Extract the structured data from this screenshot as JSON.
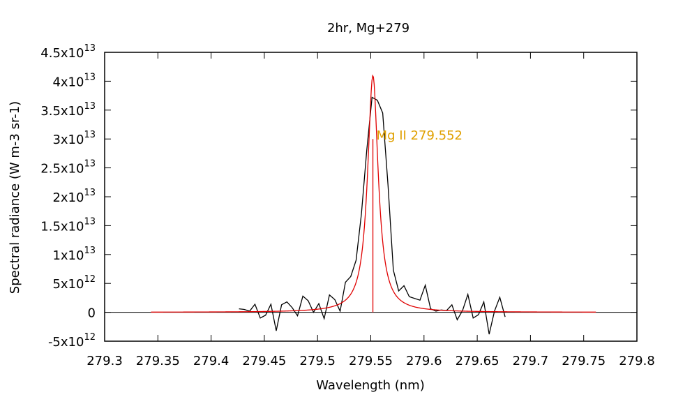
{
  "chart_data": {
    "type": "line",
    "title": "2hr, Mg+279",
    "xlabel": "Wavelength (nm)",
    "ylabel": "Spectral radiance (W m-3 sr-1)",
    "xlim": [
      279.3,
      279.8
    ],
    "ylim": [
      -5000000000000.0,
      45000000000000.0
    ],
    "x_ticks": [
      {
        "value": 279.3,
        "label": "279.3"
      },
      {
        "value": 279.35,
        "label": "279.35"
      },
      {
        "value": 279.4,
        "label": "279.4"
      },
      {
        "value": 279.45,
        "label": "279.45"
      },
      {
        "value": 279.5,
        "label": "279.5"
      },
      {
        "value": 279.55,
        "label": "279.55"
      },
      {
        "value": 279.6,
        "label": "279.6"
      },
      {
        "value": 279.65,
        "label": "279.65"
      },
      {
        "value": 279.7,
        "label": "279.7"
      },
      {
        "value": 279.75,
        "label": "279.75"
      },
      {
        "value": 279.8,
        "label": "279.8"
      }
    ],
    "y_ticks": [
      {
        "value": -5000000000000.0,
        "mant": "-5x10",
        "exp": "12"
      },
      {
        "value": 0,
        "mant": "0",
        "exp": ""
      },
      {
        "value": 5000000000000.0,
        "mant": "5x10",
        "exp": "12"
      },
      {
        "value": 10000000000000.0,
        "mant": "1x10",
        "exp": "13"
      },
      {
        "value": 15000000000000.0,
        "mant": "1.5x10",
        "exp": "13"
      },
      {
        "value": 20000000000000.0,
        "mant": "2x10",
        "exp": "13"
      },
      {
        "value": 25000000000000.0,
        "mant": "2.5x10",
        "exp": "13"
      },
      {
        "value": 30000000000000.0,
        "mant": "3x10",
        "exp": "13"
      },
      {
        "value": 35000000000000.0,
        "mant": "3.5x10",
        "exp": "13"
      },
      {
        "value": 40000000000000.0,
        "mant": "4x10",
        "exp": "13"
      },
      {
        "value": 45000000000000.0,
        "mant": "4.5x10",
        "exp": "13"
      }
    ],
    "grid": false,
    "zero_line": true,
    "series": [
      {
        "color": "#000000",
        "x": [
          279.4262,
          279.4312,
          279.4362,
          279.4412,
          279.4462,
          279.4512,
          279.4562,
          279.4612,
          279.4662,
          279.4712,
          279.4762,
          279.4812,
          279.4862,
          279.4912,
          279.4962,
          279.5012,
          279.5062,
          279.5112,
          279.5162,
          279.5212,
          279.5262,
          279.5312,
          279.5362,
          279.5412,
          279.5462,
          279.5512,
          279.5562,
          279.5612,
          279.5662,
          279.5712,
          279.5762,
          279.5812,
          279.5862,
          279.5912,
          279.5962,
          279.6012,
          279.6062,
          279.6112,
          279.6162,
          279.6212,
          279.6262,
          279.6312,
          279.6362,
          279.6412,
          279.6462,
          279.6512,
          279.6562,
          279.6612,
          279.6662,
          279.6712,
          279.6762
        ],
        "y": [
          600000000000.0,
          500000000000.0,
          200000000000.0,
          1400000000000.0,
          -1000000000000.0,
          -500000000000.0,
          1400000000000.0,
          -3200000000000.0,
          1300000000000.0,
          1800000000000.0,
          800000000000.0,
          -600000000000.0,
          2800000000000.0,
          2000000000000.0,
          0,
          1500000000000.0,
          -1100000000000.0,
          3000000000000.0,
          2200000000000.0,
          200000000000.0,
          5200000000000.0,
          6200000000000.0,
          9000000000000.0,
          17000000000000.0,
          28000000000000.0,
          37200000000000.0,
          36700000000000.0,
          34500000000000.0,
          22000000000000.0,
          7300000000000.0,
          3700000000000.0,
          4600000000000.0,
          2700000000000.0,
          2400000000000.0,
          2100000000000.0,
          4700000000000.0,
          600000000000.0,
          200000000000.0,
          400000000000.0,
          300000000000.0,
          1300000000000.0,
          -1300000000000.0,
          300000000000.0,
          3100000000000.0,
          -1000000000000.0,
          -400000000000.0,
          1800000000000.0,
          -3800000000000.0,
          200000000000.0,
          2600000000000.0,
          -800000000000.0
        ]
      },
      {
        "color": "#e00000",
        "function": "lorentzian",
        "amplitude": 41000000000000.0,
        "center": 279.552,
        "fwhm": 0.012,
        "x_range": [
          279.3435,
          279.7615
        ]
      }
    ],
    "annotations": [
      {
        "text": "Mg II 279.552",
        "x": 279.552,
        "y": 30000000000000.0,
        "color": "#e0a000",
        "line_color": "#e00000"
      }
    ]
  }
}
